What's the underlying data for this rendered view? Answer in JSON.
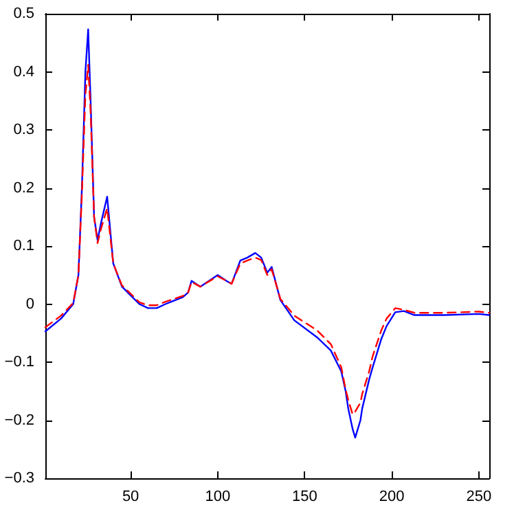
{
  "chart_data": {
    "type": "line",
    "x": [
      1,
      10,
      17,
      20,
      22,
      24,
      25.6,
      27,
      29,
      31,
      33,
      36.5,
      40,
      45,
      50,
      55,
      60,
      65,
      70,
      80,
      83,
      85,
      90,
      100,
      105,
      108,
      113,
      117,
      121.6,
      125,
      128.5,
      131,
      136,
      144,
      157,
      165,
      171,
      173.5,
      175,
      177.5,
      179,
      182,
      183,
      187,
      189,
      194,
      197,
      202,
      207,
      213,
      230,
      250,
      256
    ],
    "series": [
      {
        "color": "#0000ff",
        "line_style": "solid",
        "values": [
          -0.047,
          -0.025,
          0,
          0.05,
          0.2,
          0.4,
          0.473,
          0.35,
          0.15,
          0.11,
          0.14,
          0.185,
          0.07,
          0.03,
          0.015,
          0,
          -0.007,
          -0.007,
          0,
          0.012,
          0.02,
          0.04,
          0.03,
          0.05,
          0.04,
          0.035,
          0.075,
          0.08,
          0.088,
          0.08,
          0.054,
          0.064,
          0.007,
          -0.028,
          -0.057,
          -0.08,
          -0.116,
          -0.15,
          -0.18,
          -0.215,
          -0.23,
          -0.2,
          -0.18,
          -0.13,
          -0.109,
          -0.06,
          -0.038,
          -0.014,
          -0.012,
          -0.019,
          -0.019,
          -0.017,
          -0.019
        ]
      },
      {
        "color": "#ff0000",
        "line_style": "dashed",
        "values": [
          -0.04,
          -0.02,
          0.002,
          0.05,
          0.19,
          0.36,
          0.412,
          0.33,
          0.15,
          0.105,
          0.13,
          0.165,
          0.07,
          0.032,
          0.018,
          0.003,
          -0.002,
          -0.002,
          0.004,
          0.014,
          0.02,
          0.038,
          0.03,
          0.048,
          0.04,
          0.035,
          0.07,
          0.075,
          0.08,
          0.076,
          0.05,
          0.06,
          0.009,
          -0.02,
          -0.045,
          -0.069,
          -0.109,
          -0.147,
          -0.165,
          -0.19,
          -0.185,
          -0.17,
          -0.155,
          -0.116,
          -0.09,
          -0.045,
          -0.025,
          -0.007,
          -0.01,
          -0.015,
          -0.015,
          -0.013,
          -0.015
        ]
      }
    ],
    "xlim": [
      1,
      256
    ],
    "xticks": [
      50,
      100,
      150,
      200,
      250
    ],
    "ylim": [
      -0.3,
      0.5
    ],
    "yticks": [
      -0.3,
      -0.2,
      -0.1,
      0,
      0.1,
      0.2,
      0.3,
      0.4,
      0.5
    ],
    "grid": false,
    "marker": "none"
  }
}
